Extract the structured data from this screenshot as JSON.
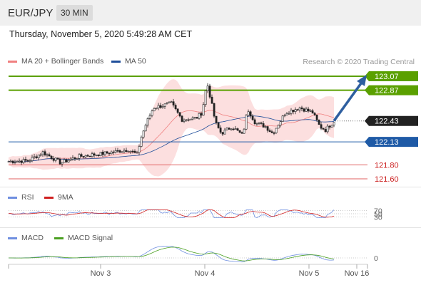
{
  "header": {
    "pair": "EUR/JPY",
    "timeframe": "30 MIN"
  },
  "datetime": "Thursday, November 5, 2020 5:49:28 AM CET",
  "legend": {
    "ma20": "MA 20 + Bollinger Bands",
    "ma50": "MA 50",
    "credit": "Research © 2020 Trading Central",
    "rsi": "RSI",
    "rsi_ma": "9MA",
    "macd": "MACD",
    "macd_signal": "MACD Signal"
  },
  "colors": {
    "ma20": "#f08080",
    "ma50": "#1f4e9a",
    "resistance": "#5aa000",
    "pivot": "#1e5aa6",
    "support": "#e06060",
    "rsi": "#6f8fe0",
    "rsi_ma": "#d02020",
    "macd_signal": "#4aa020",
    "arrow": "#2e5fa0"
  },
  "levels": [
    {
      "value": 123.07,
      "label": "123.07",
      "kind": "resistance"
    },
    {
      "value": 122.87,
      "label": "122.87",
      "kind": "resistance"
    },
    {
      "value": 122.43,
      "label": "122.43",
      "kind": "current"
    },
    {
      "value": 122.13,
      "label": "122.13",
      "kind": "pivot"
    },
    {
      "value": 121.8,
      "label": "121.80",
      "kind": "support"
    },
    {
      "value": 121.6,
      "label": "121.60",
      "kind": "support"
    }
  ],
  "rsi_levels": [
    "70",
    "50",
    "30"
  ],
  "macd_level": "0",
  "x_axis": [
    "Nov 3",
    "Nov 4",
    "Nov 5",
    "Nov 16"
  ],
  "chart_data": {
    "type": "candlestick",
    "series": [
      {
        "name": "EUR/JPY"
      }
    ],
    "ylim": [
      121.55,
      123.1
    ],
    "target_price": 123.07,
    "key_points": [
      {
        "x": "Nov 2 late",
        "close": 121.85
      },
      {
        "x": "Nov 3",
        "close": 121.95
      },
      {
        "x": "Nov 3 late",
        "close": 122.1
      },
      {
        "x": "Nov 4 early",
        "close": 122.55
      },
      {
        "x": "Nov 4",
        "close": 122.98
      },
      {
        "x": "Nov 4 mid",
        "close": 122.25
      },
      {
        "x": "Nov 4 late",
        "close": 122.45
      },
      {
        "x": "Nov 5",
        "close": 122.3
      },
      {
        "x": "Nov 5 now",
        "close": 122.43
      }
    ]
  }
}
